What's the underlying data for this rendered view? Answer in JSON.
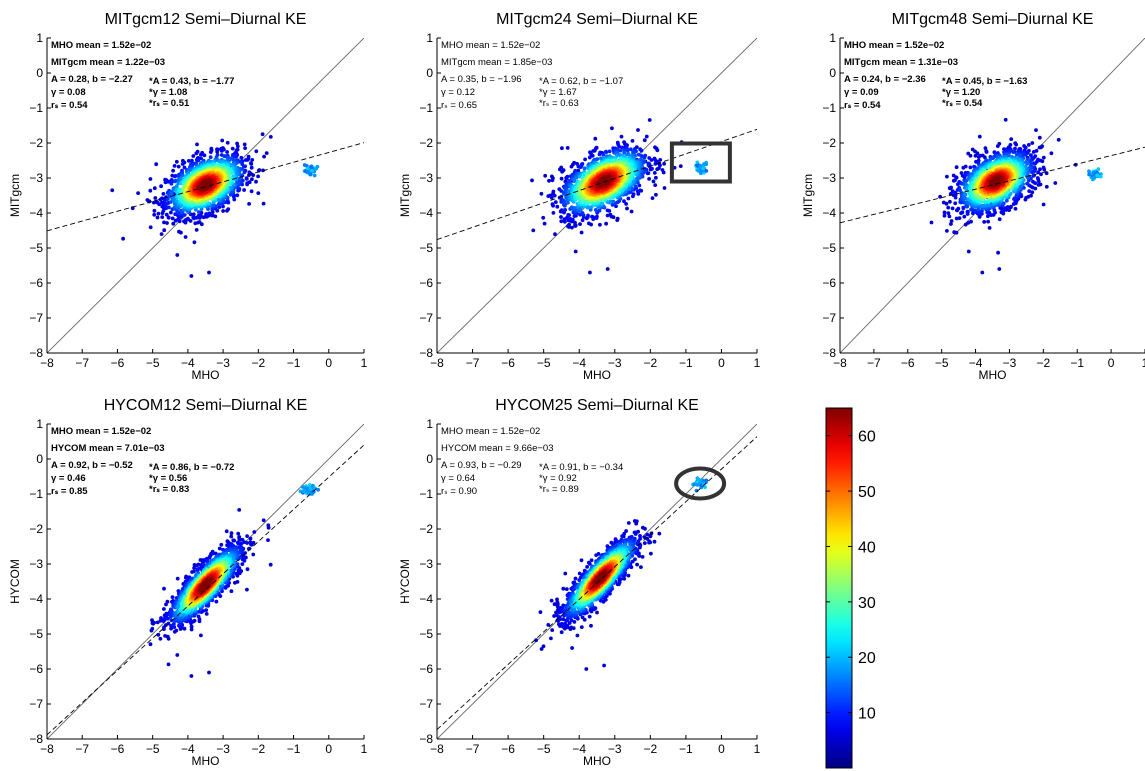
{
  "chart_data": [
    {
      "type": "scatter",
      "title": "MITgcm12 Semi–Diurnal KE",
      "xlabel": "MHO",
      "ylabel": "MITgcm",
      "xlim": [
        -8,
        1
      ],
      "ylim": [
        -8,
        1
      ],
      "xticks": [
        "−8",
        "−7",
        "−6",
        "−5",
        "−4",
        "−3",
        "−2",
        "−1",
        "0",
        "1"
      ],
      "yticks": [
        "1",
        "0",
        "−1",
        "−2",
        "−3",
        "−4",
        "−5",
        "−6",
        "−7",
        "−8"
      ],
      "stats_bold": true,
      "stats_left": [
        "MHO mean = 1.52e−02",
        "MITgcm mean = 1.22e−03",
        "A = 0.28, b = −2.27",
        "γ = 0.08",
        "rₛ = 0.54"
      ],
      "stats_right": [
        "*A = 0.43, b = −1.77",
        "*γ = 1.08",
        "*rₛ = 0.51"
      ],
      "fit_slope": 0.28,
      "fit_intercept": -2.27,
      "cluster_center": [
        -3.5,
        -3.2
      ],
      "cluster_spread": [
        0.55,
        0.38
      ],
      "cluster_tilt": 0.35,
      "outlier_cluster": [
        -0.55,
        -2.8
      ],
      "marker": "none"
    },
    {
      "type": "scatter",
      "title": "MITgcm24 Semi–Diurnal KE",
      "xlabel": "MHO",
      "ylabel": "MITgcm",
      "xlim": [
        -8,
        1
      ],
      "ylim": [
        -8,
        1
      ],
      "xticks": [
        "−8",
        "−7",
        "−6",
        "−5",
        "−4",
        "−3",
        "−2",
        "−1",
        "0",
        "1"
      ],
      "yticks": [
        "1",
        "0",
        "−1",
        "−2",
        "−3",
        "−4",
        "−5",
        "−6",
        "−7",
        "−8"
      ],
      "stats_bold": false,
      "stats_left": [
        "MHO mean = 1.52e−02",
        "MITgcm mean = 1.85e−03",
        "A = 0.35, b = −1.96",
        "γ = 0.12",
        "rₛ = 0.65"
      ],
      "stats_right": [
        "*A = 0.62, b = −1.07",
        "*γ = 1.67",
        "*rₛ = 0.63"
      ],
      "fit_slope": 0.35,
      "fit_intercept": -1.96,
      "cluster_center": [
        -3.3,
        -3.1
      ],
      "cluster_spread": [
        0.6,
        0.4
      ],
      "cluster_tilt": 0.4,
      "outlier_cluster": [
        -0.55,
        -2.7
      ],
      "marker": "box"
    },
    {
      "type": "scatter",
      "title": "MITgcm48 Semi–Diurnal KE",
      "xlabel": "MHO",
      "ylabel": "MITgcm",
      "xlim": [
        -8,
        1
      ],
      "ylim": [
        -8,
        1
      ],
      "xticks": [
        "−8",
        "−7",
        "−6",
        "−5",
        "−4",
        "−3",
        "−2",
        "−1",
        "0",
        "1"
      ],
      "yticks": [
        "1",
        "0",
        "−1",
        "−2",
        "−3",
        "−4",
        "−5",
        "−6",
        "−7",
        "−8"
      ],
      "stats_bold": true,
      "stats_left": [
        "MHO mean = 1.52e−02",
        "MITgcm mean = 1.31e−03",
        "A = 0.24, b = −2.36",
        "γ = 0.09",
        "rₛ = 0.54"
      ],
      "stats_right": [
        "*A = 0.45, b = −1.63",
        "*γ = 1.20",
        "*rₛ = 0.54"
      ],
      "fit_slope": 0.24,
      "fit_intercept": -2.36,
      "cluster_center": [
        -3.4,
        -3.1
      ],
      "cluster_spread": [
        0.55,
        0.38
      ],
      "cluster_tilt": 0.35,
      "outlier_cluster": [
        -0.5,
        -2.9
      ],
      "marker": "none"
    },
    {
      "type": "scatter",
      "title": "HYCOM12 Semi–Diurnal KE",
      "xlabel": "MHO",
      "ylabel": "HYCOM",
      "xlim": [
        -8,
        1
      ],
      "ylim": [
        -8,
        1
      ],
      "xticks": [
        "−8",
        "−7",
        "−6",
        "−5",
        "−4",
        "−3",
        "−2",
        "−1",
        "0",
        "1"
      ],
      "yticks": [
        "1",
        "0",
        "−1",
        "−2",
        "−3",
        "−4",
        "−5",
        "−6",
        "−7",
        "−8"
      ],
      "stats_bold": true,
      "stats_left": [
        "MHO mean = 1.52e−02",
        "HYCOM mean = 7.01e−03",
        "A = 0.92, b = −0.52",
        "γ = 0.46",
        "rₛ = 0.85"
      ],
      "stats_right": [
        "*A = 0.86, b = −0.72",
        "*γ = 0.56",
        "*rₛ = 0.83"
      ],
      "fit_slope": 0.92,
      "fit_intercept": -0.52,
      "cluster_center": [
        -3.5,
        -3.6
      ],
      "cluster_spread": [
        0.5,
        0.3
      ],
      "cluster_tilt": 0.9,
      "outlier_cluster": [
        -0.55,
        -0.9
      ],
      "marker": "none"
    },
    {
      "type": "scatter",
      "title": "HYCOM25 Semi–Diurnal KE",
      "xlabel": "MHO",
      "ylabel": "HYCOM",
      "xlim": [
        -8,
        1
      ],
      "ylim": [
        -8,
        1
      ],
      "xticks": [
        "−8",
        "−7",
        "−6",
        "−5",
        "−4",
        "−3",
        "−2",
        "−1",
        "0",
        "1"
      ],
      "yticks": [
        "1",
        "0",
        "−1",
        "−2",
        "−3",
        "−4",
        "−5",
        "−6",
        "−7",
        "−8"
      ],
      "stats_bold": false,
      "stats_left": [
        "MHO mean = 1.52e−02",
        "HYCOM mean = 9.66e−03",
        "A = 0.93, b = −0.29",
        "γ = 0.64",
        "rₛ = 0.90"
      ],
      "stats_right": [
        "*A = 0.91, b = −0.34",
        "*γ = 0.92",
        "*rₛ = 0.89"
      ],
      "fit_slope": 0.93,
      "fit_intercept": -0.29,
      "cluster_center": [
        -3.4,
        -3.4
      ],
      "cluster_spread": [
        0.5,
        0.3
      ],
      "cluster_tilt": 0.95,
      "outlier_cluster": [
        -0.6,
        -0.7
      ],
      "marker": "circle"
    }
  ],
  "colorbar": {
    "ticks": [
      "60",
      "50",
      "40",
      "30",
      "20",
      "10"
    ],
    "tick_values": [
      60,
      50,
      40,
      30,
      20,
      10
    ],
    "range": [
      0,
      65
    ],
    "colormap": "jet"
  }
}
